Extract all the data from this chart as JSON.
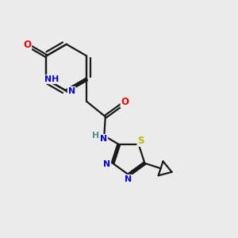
{
  "bg_color": "#ebebeb",
  "bond_color": "#1a1a1a",
  "atom_colors": {
    "N": "#0000ee",
    "O": "#ee0000",
    "S": "#bbbb00",
    "H_color": "#4a9090",
    "C": "#1a1a1a"
  },
  "lw": 1.6,
  "dbo": 0.055,
  "fs": 7.8
}
